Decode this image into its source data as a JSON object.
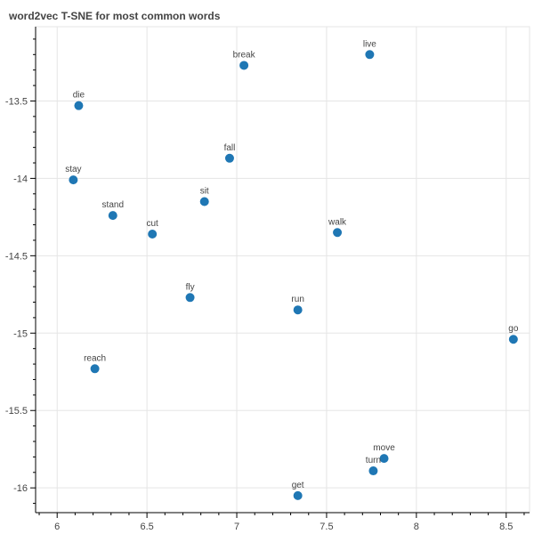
{
  "chart_data": {
    "type": "scatter",
    "title": "word2vec T-SNE for most common words",
    "xlabel": "",
    "ylabel": "",
    "xlim": [
      5.88,
      8.63
    ],
    "ylim": [
      -16.16,
      -13.02
    ],
    "x_ticks": [
      6,
      6.5,
      7,
      7.5,
      8,
      8.5
    ],
    "x_tick_labels": [
      "6",
      "6.5",
      "7",
      "7.5",
      "8",
      "8.5"
    ],
    "y_ticks": [
      -13.5,
      -14,
      -14.5,
      -15,
      -15.5,
      -16
    ],
    "y_tick_labels": [
      "-13.5",
      "-14",
      "-14.5",
      "-15",
      "-15.5",
      "-16"
    ],
    "grid": true,
    "marker_color": "#1f77b4",
    "points": [
      {
        "label": "live",
        "x": 7.74,
        "y": -13.2
      },
      {
        "label": "break",
        "x": 7.04,
        "y": -13.27
      },
      {
        "label": "die",
        "x": 6.12,
        "y": -13.53
      },
      {
        "label": "fall",
        "x": 6.96,
        "y": -13.87
      },
      {
        "label": "stay",
        "x": 6.09,
        "y": -14.01
      },
      {
        "label": "sit",
        "x": 6.82,
        "y": -14.15
      },
      {
        "label": "stand",
        "x": 6.31,
        "y": -14.24
      },
      {
        "label": "cut",
        "x": 6.53,
        "y": -14.36
      },
      {
        "label": "walk",
        "x": 7.56,
        "y": -14.35
      },
      {
        "label": "fly",
        "x": 6.74,
        "y": -14.77
      },
      {
        "label": "run",
        "x": 7.34,
        "y": -14.85
      },
      {
        "label": "go",
        "x": 8.54,
        "y": -15.04
      },
      {
        "label": "reach",
        "x": 6.21,
        "y": -15.23
      },
      {
        "label": "move",
        "x": 7.82,
        "y": -15.81
      },
      {
        "label": "turn",
        "x": 7.76,
        "y": -15.89
      },
      {
        "label": "get",
        "x": 7.34,
        "y": -16.05
      }
    ]
  }
}
